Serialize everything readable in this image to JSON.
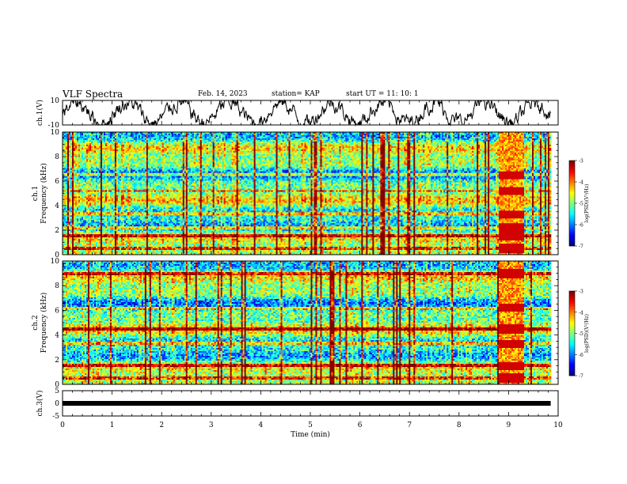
{
  "header": {
    "title": "VLF Spectra",
    "date": "Feb. 14, 2023",
    "station": "station= KAP",
    "start": "start  UT  =    11: 10: 1"
  },
  "chart_data": [
    {
      "type": "line",
      "id": "ch1-waveform",
      "ylabel": "ch.1(V)",
      "ylim": [
        -10,
        10
      ],
      "y_tick_labels": [
        "10",
        "-10"
      ],
      "x_range_min": [
        0,
        9.85
      ],
      "trace_color": "#000000"
    },
    {
      "type": "heatmap",
      "id": "ch1-spectrogram",
      "ylabel": "ch.1\nFrequency  (kHz)",
      "ylim": [
        0,
        10
      ],
      "y_ticks": [
        0,
        2,
        4,
        6,
        8,
        10
      ],
      "x_range_min": [
        0,
        9.85
      ],
      "colorbar": {
        "label": "log(PSD)(V²/Hz)",
        "range": [
          -7,
          -3
        ],
        "ticks": [
          -7,
          -6,
          -5,
          -4,
          -3
        ]
      },
      "strong_lines_khz": [
        0.5,
        1.5,
        2.2,
        3.3,
        5.2,
        6.5
      ],
      "burst_interval_min": [
        8.8,
        9.3
      ]
    },
    {
      "type": "heatmap",
      "id": "ch2-spectrogram",
      "ylabel": "ch.2\nFrequency  (kHz)",
      "ylim": [
        0,
        10
      ],
      "y_ticks": [
        0,
        2,
        4,
        6,
        8,
        10
      ],
      "x_range_min": [
        0,
        9.85
      ],
      "colorbar": {
        "label": "log(PSD)(V²/Hz)",
        "range": [
          -7,
          -3
        ],
        "ticks": [
          -7,
          -6,
          -5,
          -4,
          -3
        ]
      },
      "strong_lines_khz": [
        0.5,
        1.5,
        3.3,
        4.5,
        6.2,
        9.0
      ],
      "burst_interval_min": [
        8.8,
        9.3
      ]
    },
    {
      "type": "line",
      "id": "ch3-waveform",
      "ylabel": "ch.3(V)",
      "ylim": [
        -5,
        5
      ],
      "y_tick_labels": [
        "5",
        "0",
        "-5"
      ],
      "level_V": 0,
      "x_range_min": [
        0,
        9.85
      ]
    }
  ],
  "x_axis": {
    "label": "Time  (min)",
    "range": [
      0,
      10
    ],
    "ticks": [
      "0",
      "1",
      "2",
      "3",
      "4",
      "5",
      "6",
      "7",
      "8",
      "9",
      "10"
    ]
  }
}
